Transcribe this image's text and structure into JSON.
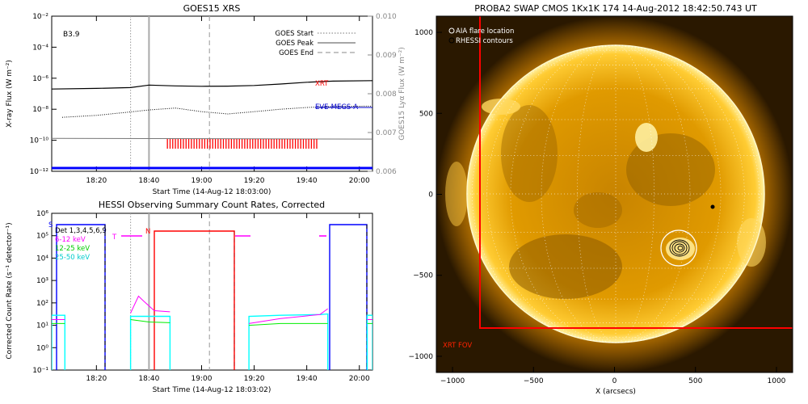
{
  "goes": {
    "title": "GOES15 XRS",
    "ylabel": "X-ray Flux (W m⁻²)",
    "ylabel_right": "GOES15 Lyα Flux (W m⁻²)",
    "xlabel": "Start Time (14-Aug-12 18:03:00)",
    "flare_class": "B3.9",
    "legend": [
      "GOES Start",
      "GOES Peak",
      "GOES End"
    ],
    "series_labels": {
      "xrt": "XRT",
      "eve": "EVE-MEGS-A"
    },
    "xticks": [
      "18:20",
      "18:40",
      "19:00",
      "19:20",
      "19:40",
      "20:00"
    ],
    "yticks": [
      "10⁻²",
      "10⁻⁴",
      "10⁻⁶",
      "10⁻⁸",
      "10⁻¹⁰",
      "10⁻¹²"
    ],
    "yticks_right": [
      "0.010",
      "0.009",
      "0.008",
      "0.007",
      "0.006"
    ]
  },
  "hessi": {
    "title": "HESSI Observing Summary Count Rates, Corrected",
    "ylabel": "Corrected Count Rate (s⁻¹ detector⁻¹)",
    "xlabel": "Start Time (14-Aug-12 18:03:02)",
    "legend": [
      "Det 1,3,4,5,6,9",
      "6-12 keV",
      "12-25 keV",
      "25-50 keV"
    ],
    "flags": {
      "s": "S",
      "n": "N",
      "t": "T"
    },
    "xticks": [
      "18:20",
      "18:40",
      "19:00",
      "19:20",
      "19:40",
      "20:00"
    ],
    "yticks": [
      "10⁶",
      "10⁵",
      "10⁴",
      "10³",
      "10²",
      "10¹",
      "10⁰",
      "10⁻¹"
    ]
  },
  "swap": {
    "title": "PROBA2 SWAP CMOS 1Kx1K 174 14-Aug-2012 18:42:50.743 UT",
    "xlabel": "X (arcsecs)",
    "legend": [
      "AIA flare location",
      "RHESSI contours"
    ],
    "fov_label": "XRT FOV",
    "xticks": [
      "−1000",
      "−500",
      "0",
      "500",
      "1000"
    ],
    "yticks": [
      "1000",
      "500",
      "0",
      "−500",
      "−1000"
    ]
  },
  "colors": {
    "xrt": "#ff0000",
    "eve": "#0000cc",
    "goes_lo": "#0000ff",
    "c612": "#ff00ff",
    "c1225": "#00ff00",
    "c2550": "#00ffff",
    "fov": "#ff0000",
    "sun": "#f0a800"
  },
  "chart_data": [
    {
      "type": "line",
      "title": "GOES15 XRS",
      "xlabel": "Start Time (14-Aug-12 18:03:00)",
      "ylabel": "X-ray Flux (W m⁻²)",
      "y_scale": "log",
      "xlim": [
        "18:03",
        "20:05"
      ],
      "ylim": [
        1e-12,
        0.01
      ],
      "y2lim": [
        0.006,
        0.01
      ],
      "markers": {
        "goes_start": "18:33",
        "goes_peak": "18:40",
        "goes_end": "19:03"
      },
      "series": [
        {
          "name": "XRT",
          "x": [
            "18:03",
            "18:20",
            "18:33",
            "18:40",
            "18:50",
            "19:00",
            "19:10",
            "19:20",
            "19:30",
            "19:40",
            "19:50",
            "20:05"
          ],
          "y": [
            2e-07,
            2.2e-07,
            2.5e-07,
            3.6e-07,
            3.2e-07,
            3e-07,
            3.1e-07,
            3.4e-07,
            4.2e-07,
            5.5e-07,
            6.5e-07,
            7e-07
          ]
        },
        {
          "name": "EVE-MEGS-A",
          "x": [
            "18:07",
            "18:20",
            "18:30",
            "18:40",
            "18:50",
            "19:00",
            "19:10",
            "19:20",
            "19:30",
            "19:40",
            "19:50",
            "20:05"
          ],
          "y": [
            3e-09,
            4e-09,
            6e-09,
            9e-09,
            1.2e-08,
            7e-09,
            5e-09,
            7e-09,
            1e-08,
            1.3e-08,
            1.5e-08,
            1.6e-08
          ]
        }
      ]
    },
    {
      "type": "line",
      "title": "HESSI Observing Summary Count Rates, Corrected",
      "xlabel": "Start Time (14-Aug-12 18:03:02)",
      "ylabel": "Corrected Count Rate (s⁻¹ detector⁻¹)",
      "y_scale": "log",
      "xlim": [
        "18:03",
        "20:05"
      ],
      "ylim": [
        0.1,
        1000000.0
      ],
      "series": [
        {
          "name": "6-12 keV",
          "x": [
            "18:03",
            "18:08",
            "18:33",
            "18:36",
            "18:38",
            "18:42",
            "18:48",
            "19:18",
            "19:30",
            "19:45",
            "19:48",
            "20:03",
            "20:05"
          ],
          "y": [
            18,
            18,
            35,
            200,
            120,
            45,
            40,
            12,
            20,
            30,
            55,
            18,
            18
          ]
        },
        {
          "name": "12-25 keV",
          "x": [
            "18:03",
            "18:08",
            "18:33",
            "18:40",
            "18:48",
            "19:18",
            "19:30",
            "19:45",
            "19:48",
            "20:03",
            "20:05"
          ],
          "y": [
            12,
            12,
            18,
            14,
            13,
            10,
            12,
            12,
            12,
            12,
            12
          ]
        },
        {
          "name": "25-50 keV",
          "x": [
            "18:03",
            "18:08",
            "18:33",
            "18:40",
            "18:48",
            "19:18",
            "19:30",
            "19:45",
            "19:48",
            "20:03",
            "20:05"
          ],
          "y": [
            28,
            28,
            25,
            25,
            25,
            25,
            28,
            30,
            32,
            28,
            28
          ]
        }
      ]
    }
  ]
}
